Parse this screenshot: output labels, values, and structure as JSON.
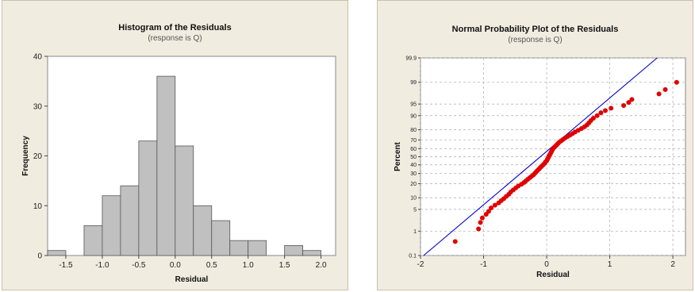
{
  "chart_data": [
    {
      "type": "bar",
      "title": "Histogram of the Residuals",
      "subtitle": "(response is Q)",
      "xlabel": "Residual",
      "ylabel": "Frequency",
      "bin_width": 0.25,
      "bin_centers": [
        -1.625,
        -1.375,
        -1.125,
        -0.875,
        -0.625,
        -0.375,
        -0.125,
        0.125,
        0.375,
        0.625,
        0.875,
        1.125,
        1.375,
        1.625,
        1.875,
        2.125
      ],
      "values": [
        1,
        0,
        6,
        12,
        14,
        23,
        36,
        22,
        10,
        7,
        3,
        3,
        0,
        2,
        1,
        0
      ],
      "x_ticks": [
        -1.5,
        -1.0,
        -0.5,
        0.0,
        0.5,
        1.0,
        1.5,
        2.0
      ],
      "x_tick_labels": [
        "-1.5",
        "-1.0",
        "-0.5",
        "0.0",
        "0.5",
        "1.0",
        "1.5",
        "2.0"
      ],
      "y_ticks": [
        0,
        10,
        20,
        30,
        40
      ],
      "xlim": [
        -1.75,
        2.2
      ],
      "ylim": [
        0,
        40
      ],
      "bar_color": "#c0c0c0",
      "grid": false
    },
    {
      "type": "scatter",
      "title": "Normal Probability Plot of the Residuals",
      "subtitle": "(response is Q)",
      "xlabel": "Residual",
      "ylabel": "Percent",
      "x_ticks": [
        -2,
        -1,
        0,
        1,
        2
      ],
      "y_ticks": [
        0.1,
        1,
        5,
        10,
        20,
        30,
        40,
        50,
        60,
        70,
        80,
        90,
        95,
        99,
        99.9
      ],
      "y_tick_labels": [
        "0.1",
        "1",
        "5",
        "10",
        "20",
        "30",
        "40",
        "50",
        "60",
        "70",
        "80",
        "90",
        "95",
        "99",
        "99.9"
      ],
      "xlim": [
        -2.0,
        2.2
      ],
      "ylim": [
        0.1,
        99.9
      ],
      "y_scale": "normal-probability",
      "grid": true,
      "point_color": "#e00000",
      "line_color": "#0000cc",
      "fit_line": [
        {
          "x": -1.95,
          "y": 0.1
        },
        {
          "x": 1.75,
          "y": 99.9
        }
      ],
      "points": [
        {
          "x": -1.45,
          "y": 0.4
        },
        {
          "x": -1.08,
          "y": 1.2
        },
        {
          "x": -1.05,
          "y": 2.0
        },
        {
          "x": -1.02,
          "y": 2.8
        },
        {
          "x": -0.96,
          "y": 3.6
        },
        {
          "x": -0.92,
          "y": 4.4
        },
        {
          "x": -0.88,
          "y": 5.5
        },
        {
          "x": -0.82,
          "y": 6.5
        },
        {
          "x": -0.76,
          "y": 7.5
        },
        {
          "x": -0.72,
          "y": 8.5
        },
        {
          "x": -0.68,
          "y": 9.5
        },
        {
          "x": -0.64,
          "y": 10.8
        },
        {
          "x": -0.6,
          "y": 12.0
        },
        {
          "x": -0.57,
          "y": 13.5
        },
        {
          "x": -0.53,
          "y": 15.0
        },
        {
          "x": -0.49,
          "y": 16.5
        },
        {
          "x": -0.45,
          "y": 18.0
        },
        {
          "x": -0.4,
          "y": 19.5
        },
        {
          "x": -0.36,
          "y": 21.0
        },
        {
          "x": -0.33,
          "y": 22.5
        },
        {
          "x": -0.3,
          "y": 24.0
        },
        {
          "x": -0.27,
          "y": 25.5
        },
        {
          "x": -0.24,
          "y": 27.0
        },
        {
          "x": -0.21,
          "y": 28.5
        },
        {
          "x": -0.19,
          "y": 30.0
        },
        {
          "x": -0.17,
          "y": 31.5
        },
        {
          "x": -0.15,
          "y": 33.0
        },
        {
          "x": -0.13,
          "y": 34.5
        },
        {
          "x": -0.11,
          "y": 36.0
        },
        {
          "x": -0.09,
          "y": 37.5
        },
        {
          "x": -0.07,
          "y": 39.0
        },
        {
          "x": -0.05,
          "y": 40.5
        },
        {
          "x": -0.03,
          "y": 42.0
        },
        {
          "x": -0.02,
          "y": 43.5
        },
        {
          "x": 0.0,
          "y": 45.0
        },
        {
          "x": 0.01,
          "y": 46.5
        },
        {
          "x": 0.02,
          "y": 48.0
        },
        {
          "x": 0.03,
          "y": 49.5
        },
        {
          "x": 0.04,
          "y": 51.0
        },
        {
          "x": 0.05,
          "y": 52.5
        },
        {
          "x": 0.06,
          "y": 54.0
        },
        {
          "x": 0.07,
          "y": 55.5
        },
        {
          "x": 0.08,
          "y": 57.0
        },
        {
          "x": 0.09,
          "y": 58.5
        },
        {
          "x": 0.1,
          "y": 60.0
        },
        {
          "x": 0.12,
          "y": 61.5
        },
        {
          "x": 0.14,
          "y": 63.0
        },
        {
          "x": 0.16,
          "y": 64.5
        },
        {
          "x": 0.18,
          "y": 66.0
        },
        {
          "x": 0.2,
          "y": 67.5
        },
        {
          "x": 0.23,
          "y": 69.0
        },
        {
          "x": 0.26,
          "y": 70.5
        },
        {
          "x": 0.29,
          "y": 72.0
        },
        {
          "x": 0.33,
          "y": 73.5
        },
        {
          "x": 0.37,
          "y": 75.0
        },
        {
          "x": 0.41,
          "y": 76.5
        },
        {
          "x": 0.45,
          "y": 78.0
        },
        {
          "x": 0.5,
          "y": 79.5
        },
        {
          "x": 0.55,
          "y": 81.0
        },
        {
          "x": 0.6,
          "y": 82.5
        },
        {
          "x": 0.64,
          "y": 84.0
        },
        {
          "x": 0.67,
          "y": 85.5
        },
        {
          "x": 0.7,
          "y": 87.0
        },
        {
          "x": 0.74,
          "y": 88.5
        },
        {
          "x": 0.8,
          "y": 90.0
        },
        {
          "x": 0.86,
          "y": 91.5
        },
        {
          "x": 0.93,
          "y": 92.5
        },
        {
          "x": 1.02,
          "y": 93.5
        },
        {
          "x": 1.22,
          "y": 94.5
        },
        {
          "x": 1.3,
          "y": 95.5
        },
        {
          "x": 1.35,
          "y": 96.3
        },
        {
          "x": 1.78,
          "y": 97.5
        },
        {
          "x": 1.88,
          "y": 98.2
        },
        {
          "x": 2.06,
          "y": 99.0
        }
      ]
    }
  ]
}
